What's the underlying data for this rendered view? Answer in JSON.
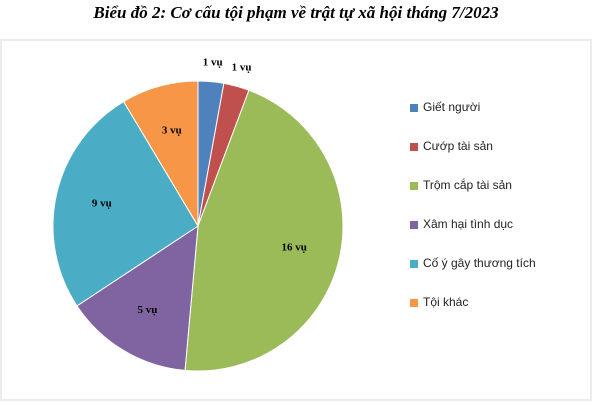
{
  "chart_data": {
    "type": "pie",
    "title": "Biểu đồ 2: Cơ cấu tội phạm về trật tự xã hội tháng 7/2023",
    "categories": [
      "Giết người",
      "Cướp tài sản",
      "Trộm cắp tài sản",
      "Xâm hại tình dục",
      "Cố ý gây thương tích",
      "Tội khác"
    ],
    "values": [
      1,
      1,
      16,
      5,
      9,
      3
    ],
    "value_labels": [
      "1 vụ",
      "1 vụ",
      "16 vụ",
      "5 vụ",
      "9 vụ",
      "3 vụ"
    ],
    "colors": [
      "#4f81bd",
      "#c0504d",
      "#9bbb59",
      "#8064a2",
      "#4bacc6",
      "#f79646"
    ],
    "legend": "right"
  }
}
